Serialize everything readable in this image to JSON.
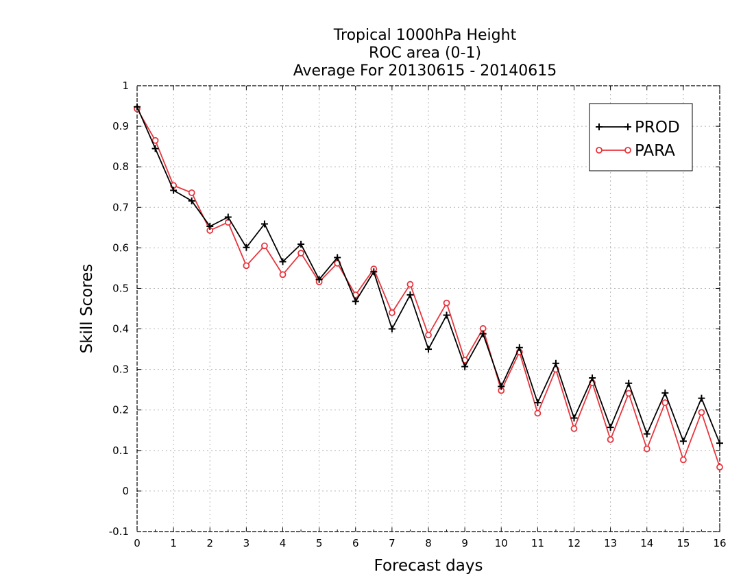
{
  "chart_data": {
    "type": "line",
    "title_lines": [
      "Tropical 1000hPa Height",
      "ROC area (0-1)",
      "Average For 20130615 - 20140615"
    ],
    "xlabel": "Forecast days",
    "ylabel": "Skill Scores",
    "xlim": [
      0,
      16
    ],
    "ylim": [
      -0.1,
      1
    ],
    "x_ticks": [
      0,
      1,
      2,
      3,
      4,
      5,
      6,
      7,
      8,
      9,
      10,
      11,
      12,
      13,
      14,
      15,
      16
    ],
    "y_ticks": [
      -0.1,
      0,
      0.1,
      0.2,
      0.3,
      0.4,
      0.5,
      0.6,
      0.7,
      0.8,
      0.9,
      1
    ],
    "y_tick_labels": [
      "-0.1",
      "0",
      "0.1",
      "0.2",
      "0.3",
      "0.4",
      "0.5",
      "0.6",
      "0.7",
      "0.8",
      "0.9",
      "1"
    ],
    "grid": true,
    "legend_position": "top-right",
    "x": [
      0,
      0.5,
      1,
      1.5,
      2,
      2.5,
      3,
      3.5,
      4,
      4.5,
      5,
      5.5,
      6,
      6.5,
      7,
      7.5,
      8,
      8.5,
      9,
      9.5,
      10,
      10.5,
      11,
      11.5,
      12,
      12.5,
      13,
      13.5,
      14,
      14.5,
      15,
      15.5,
      16
    ],
    "series": [
      {
        "name": "PROD",
        "color": "#000000",
        "marker": "plus",
        "values": [
          0.948,
          0.845,
          0.742,
          0.716,
          0.653,
          0.676,
          0.601,
          0.659,
          0.566,
          0.609,
          0.522,
          0.576,
          0.468,
          0.541,
          0.4,
          0.484,
          0.35,
          0.434,
          0.307,
          0.388,
          0.258,
          0.354,
          0.218,
          0.315,
          0.18,
          0.279,
          0.157,
          0.266,
          0.141,
          0.242,
          0.123,
          0.229,
          0.118
        ]
      },
      {
        "name": "PARA",
        "color": "#e8353d",
        "marker": "circle",
        "values": [
          0.943,
          0.865,
          0.754,
          0.736,
          0.643,
          0.663,
          0.556,
          0.605,
          0.534,
          0.587,
          0.516,
          0.562,
          0.484,
          0.548,
          0.44,
          0.51,
          0.385,
          0.464,
          0.323,
          0.401,
          0.248,
          0.343,
          0.192,
          0.3,
          0.154,
          0.267,
          0.127,
          0.241,
          0.104,
          0.218,
          0.077,
          0.194,
          0.059
        ]
      }
    ]
  }
}
